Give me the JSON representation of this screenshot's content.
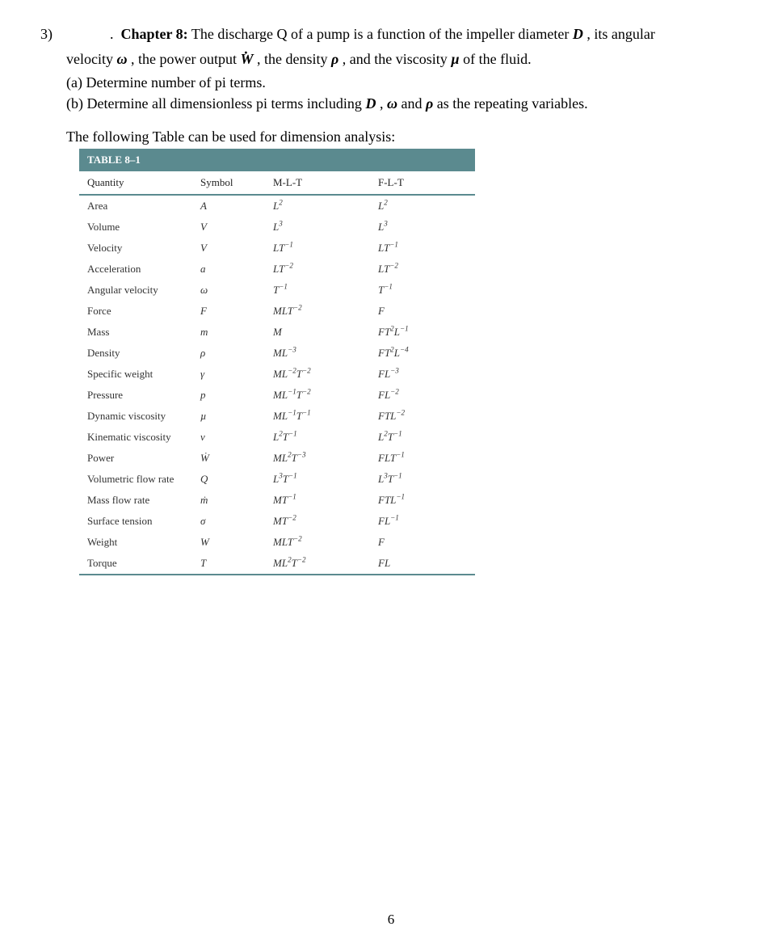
{
  "problem": {
    "number": "3)",
    "chapter_label": "Chapter 8:",
    "line1_a": " The discharge Q of a pump is a function of the impeller diameter ",
    "D": "D",
    "line1_b": ", its angular",
    "line2_a": "velocity ",
    "omega": "ω",
    "line2_b": ", the power output ",
    "Wdot": "W",
    "line2_c": ", the density ",
    "rho": "ρ",
    "line2_d": ", and the viscosity ",
    "mu": "µ",
    "line2_e": " of the fluid.",
    "part_a": "(a)  Determine number of pi terms.",
    "part_b_a": "(b)  Determine all dimensionless pi terms including ",
    "part_b_D": "D",
    "part_b_b": ", ",
    "part_b_omega": "ω",
    "part_b_c": " and ",
    "part_b_rho": "ρ",
    "part_b_d": " as the repeating variables."
  },
  "table_intro": "The following Table can be used for dimension analysis:",
  "table_title": "TABLE 8–1",
  "headers": {
    "quantity": "Quantity",
    "symbol": "Symbol",
    "mlt": "M-L-T",
    "flt": "F-L-T"
  },
  "rows": [
    {
      "quantity": "Area",
      "symbol": "A",
      "mlt": "L<sup>2</sup>",
      "flt": "L<sup>2</sup>"
    },
    {
      "quantity": "Volume",
      "symbol": "V",
      "mlt": "L<sup>3</sup>",
      "flt": "L<sup>3</sup>"
    },
    {
      "quantity": "Velocity",
      "symbol": "V",
      "mlt": "LT<sup>−1</sup>",
      "flt": "LT<sup>−1</sup>"
    },
    {
      "quantity": "Acceleration",
      "symbol": "a",
      "mlt": "LT<sup>−2</sup>",
      "flt": "LT<sup>−2</sup>"
    },
    {
      "quantity": "Angular velocity",
      "symbol": "ω",
      "mlt": "T<sup>−1</sup>",
      "flt": "T<sup>−1</sup>"
    },
    {
      "quantity": "Force",
      "symbol": "F",
      "mlt": "MLT<sup>−2</sup>",
      "flt": "F"
    },
    {
      "quantity": "Mass",
      "symbol": "m",
      "mlt": "M",
      "flt": "FT<sup>2</sup>L<sup>−1</sup>"
    },
    {
      "quantity": "Density",
      "symbol": "ρ",
      "mlt": "ML<sup>−3</sup>",
      "flt": "FT<sup>2</sup>L<sup>−4</sup>"
    },
    {
      "quantity": "Specific weight",
      "symbol": "γ",
      "mlt": "ML<sup>−2</sup>T<sup>−2</sup>",
      "flt": "FL<sup>−3</sup>"
    },
    {
      "quantity": "Pressure",
      "symbol": "p",
      "mlt": "ML<sup>−1</sup>T<sup>−2</sup>",
      "flt": "FL<sup>−2</sup>"
    },
    {
      "quantity": "Dynamic viscosity",
      "symbol": "µ",
      "mlt": "ML<sup>−1</sup>T<sup>−1</sup>",
      "flt": "FTL<sup>−2</sup>"
    },
    {
      "quantity": "Kinematic viscosity",
      "symbol": "ν",
      "mlt": "L<sup>2</sup>T<sup>−1</sup>",
      "flt": "L<sup>2</sup>T<sup>−1</sup>"
    },
    {
      "quantity": "Power",
      "symbol": "Ẇ",
      "mlt": "ML<sup>2</sup>T<sup>−3</sup>",
      "flt": "FLT<sup>−1</sup>"
    },
    {
      "quantity": "Volumetric flow rate",
      "symbol": "Q",
      "mlt": "L<sup>3</sup>T<sup>−1</sup>",
      "flt": "L<sup>3</sup>T<sup>−1</sup>"
    },
    {
      "quantity": "Mass flow rate",
      "symbol": "ṁ",
      "mlt": "MT<sup>−1</sup>",
      "flt": "FTL<sup>−1</sup>"
    },
    {
      "quantity": "Surface tension",
      "symbol": "σ",
      "mlt": "MT<sup>−2</sup>",
      "flt": "FL<sup>−1</sup>"
    },
    {
      "quantity": "Weight",
      "symbol": "W",
      "mlt": "MLT<sup>−2</sup>",
      "flt": "F"
    },
    {
      "quantity": "Torque",
      "symbol": "T",
      "mlt": "ML<sup>2</sup>T<sup>−2</sup>",
      "flt": "FL"
    }
  ],
  "page_number": "6",
  "style": {
    "header_bg": "#5b8a8f",
    "header_fg": "#ffffff",
    "border_color": "#5b8a8f",
    "body_font_size": 18,
    "table_font_size": 13
  }
}
